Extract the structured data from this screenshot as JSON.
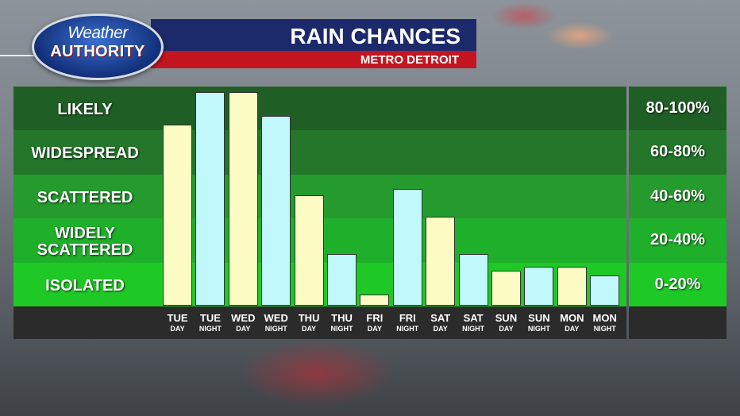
{
  "header": {
    "logo_line1": "Weather",
    "logo_line2": "AUTHORITY",
    "title": "RAIN CHANCES",
    "subtitle": "METRO DETROIT"
  },
  "categories": [
    "LIKELY",
    "WIDESPREAD",
    "SCATTERED",
    "WIDELY\nSCATTERED",
    "ISOLATED"
  ],
  "ranges": [
    "80-100%",
    "60-80%",
    "40-60%",
    "20-40%",
    "0-20%"
  ],
  "colors": {
    "day_bar": "#fdfbc4",
    "night_bar": "#c1f8fb",
    "band_greens": [
      "#1f5e25",
      "#23762a",
      "#259a2d",
      "#1fb02b",
      "#1ec925"
    ],
    "footer": "#2b2b2b"
  },
  "chart_data": {
    "type": "bar",
    "title": "RAIN CHANCES",
    "ylim": [
      0,
      100
    ],
    "categories": [
      "TUE DAY",
      "TUE NIGHT",
      "WED DAY",
      "WED NIGHT",
      "THU DAY",
      "THU NIGHT",
      "FRI DAY",
      "FRI NIGHT",
      "SAT DAY",
      "SAT NIGHT",
      "SUN DAY",
      "SUN NIGHT",
      "MON DAY",
      "MON NIGHT"
    ],
    "x_labels": [
      {
        "day": "TUE",
        "period": "DAY"
      },
      {
        "day": "TUE",
        "period": "NIGHT"
      },
      {
        "day": "WED",
        "period": "DAY"
      },
      {
        "day": "WED",
        "period": "NIGHT"
      },
      {
        "day": "THU",
        "period": "DAY"
      },
      {
        "day": "THU",
        "period": "NIGHT"
      },
      {
        "day": "FRI",
        "period": "DAY"
      },
      {
        "day": "FRI",
        "period": "NIGHT"
      },
      {
        "day": "SAT",
        "period": "DAY"
      },
      {
        "day": "SAT",
        "period": "NIGHT"
      },
      {
        "day": "SUN",
        "period": "DAY"
      },
      {
        "day": "SUN",
        "period": "NIGHT"
      },
      {
        "day": "MON",
        "period": "DAY"
      },
      {
        "day": "MON",
        "period": "NIGHT"
      }
    ],
    "values": [
      84,
      99,
      99,
      88,
      51,
      24,
      5,
      54,
      41,
      24,
      16,
      18,
      18,
      14
    ],
    "grid": false
  }
}
